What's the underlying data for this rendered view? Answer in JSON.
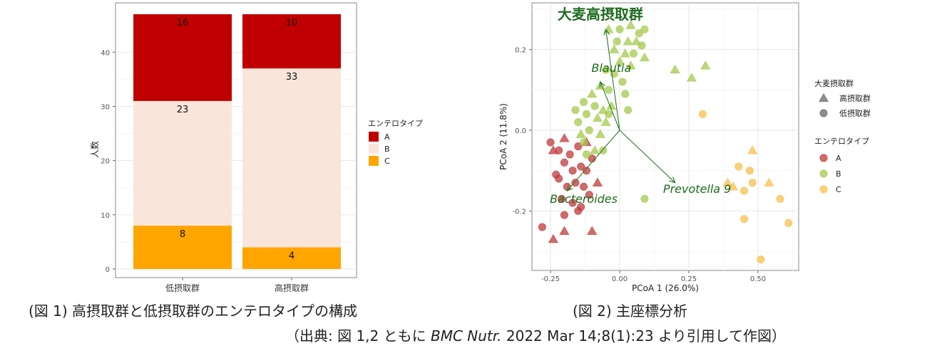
{
  "chart_data": [
    {
      "type": "bar",
      "stacked": true,
      "ylabel": "人数",
      "xlabel": "",
      "ylim": [
        0,
        48
      ],
      "yticks": [
        0,
        10,
        20,
        30,
        40
      ],
      "categories": [
        "低摂取群",
        "高摂取群"
      ],
      "series": [
        {
          "name": "C",
          "color": "#ffa500",
          "values": [
            8,
            4
          ]
        },
        {
          "name": "B",
          "color": "#fae5da",
          "values": [
            23,
            33
          ]
        },
        {
          "name": "A",
          "color": "#c00000",
          "values": [
            16,
            10
          ]
        }
      ],
      "legend": {
        "title": "エンテロタイプ",
        "position": "right",
        "entries": [
          "A",
          "B",
          "C"
        ]
      }
    },
    {
      "type": "scatter",
      "xlabel": "PCoA 1 (26.0%)",
      "ylabel": "PCoA 2 (11.8%)",
      "xlim": [
        -0.3,
        0.63
      ],
      "ylim": [
        -0.37,
        0.3
      ],
      "xticks": [
        -0.25,
        0.0,
        0.25,
        0.5
      ],
      "xtick_labels": [
        "-0.25",
        "0.00",
        "0.25",
        "0.50"
      ],
      "yticks": [
        -0.2,
        0.0,
        0.2
      ],
      "ytick_labels": [
        "-0.2",
        "0.0",
        "0.2"
      ],
      "arrow_origin": [
        0.0,
        0.0
      ],
      "arrows": [
        {
          "label": "大麦高摂取群",
          "end": [
            -0.05,
            0.25
          ],
          "label_pos": [
            -0.07,
            0.275
          ],
          "bold": true
        },
        {
          "label": "Blautia",
          "end": [
            -0.07,
            0.12
          ],
          "label_pos": [
            -0.03,
            0.145
          ],
          "bold": false
        },
        {
          "label": "Bacteroides",
          "end": [
            -0.19,
            -0.15
          ],
          "label_pos": [
            -0.13,
            -0.18
          ],
          "bold": false
        },
        {
          "label": "Prevotella 9",
          "end": [
            0.2,
            -0.13
          ],
          "label_pos": [
            0.28,
            -0.155
          ],
          "bold": false
        }
      ],
      "series": [
        {
          "name": "A",
          "color": "#c0393b",
          "points": [
            {
              "x": -0.25,
              "y": -0.03,
              "shape": "circle"
            },
            {
              "x": -0.22,
              "y": -0.05,
              "shape": "circle"
            },
            {
              "x": -0.2,
              "y": -0.02,
              "shape": "triangle"
            },
            {
              "x": -0.18,
              "y": -0.06,
              "shape": "circle"
            },
            {
              "x": -0.15,
              "y": -0.04,
              "shape": "circle"
            },
            {
              "x": -0.12,
              "y": -0.03,
              "shape": "triangle"
            },
            {
              "x": -0.2,
              "y": -0.08,
              "shape": "circle"
            },
            {
              "x": -0.17,
              "y": -0.1,
              "shape": "circle"
            },
            {
              "x": -0.14,
              "y": -0.09,
              "shape": "circle"
            },
            {
              "x": -0.12,
              "y": -0.1,
              "shape": "circle"
            },
            {
              "x": -0.1,
              "y": -0.07,
              "shape": "circle"
            },
            {
              "x": -0.22,
              "y": -0.12,
              "shape": "circle"
            },
            {
              "x": -0.19,
              "y": -0.14,
              "shape": "circle"
            },
            {
              "x": -0.16,
              "y": -0.13,
              "shape": "circle"
            },
            {
              "x": -0.13,
              "y": -0.14,
              "shape": "circle"
            },
            {
              "x": -0.21,
              "y": -0.17,
              "shape": "circle"
            },
            {
              "x": -0.17,
              "y": -0.18,
              "shape": "circle"
            },
            {
              "x": -0.14,
              "y": -0.19,
              "shape": "circle"
            },
            {
              "x": -0.11,
              "y": -0.16,
              "shape": "circle"
            },
            {
              "x": -0.2,
              "y": -0.21,
              "shape": "circle"
            },
            {
              "x": -0.15,
              "y": -0.2,
              "shape": "circle"
            },
            {
              "x": -0.28,
              "y": -0.24,
              "shape": "circle"
            },
            {
              "x": -0.24,
              "y": -0.27,
              "shape": "triangle"
            },
            {
              "x": -0.2,
              "y": -0.25,
              "shape": "triangle"
            },
            {
              "x": -0.1,
              "y": -0.25,
              "shape": "triangle"
            },
            {
              "x": -0.23,
              "y": -0.11,
              "shape": "circle"
            },
            {
              "x": -0.08,
              "y": -0.13,
              "shape": "triangle"
            },
            {
              "x": -0.24,
              "y": -0.05,
              "shape": "triangle"
            }
          ]
        },
        {
          "name": "B",
          "color": "#a6c94d",
          "points": [
            {
              "x": -0.04,
              "y": 0.25,
              "shape": "triangle"
            },
            {
              "x": 0.0,
              "y": 0.25,
              "shape": "circle"
            },
            {
              "x": 0.04,
              "y": 0.26,
              "shape": "triangle"
            },
            {
              "x": 0.07,
              "y": 0.24,
              "shape": "circle"
            },
            {
              "x": 0.09,
              "y": 0.25,
              "shape": "circle"
            },
            {
              "x": -0.01,
              "y": 0.22,
              "shape": "circle"
            },
            {
              "x": 0.03,
              "y": 0.22,
              "shape": "triangle"
            },
            {
              "x": 0.06,
              "y": 0.22,
              "shape": "triangle"
            },
            {
              "x": 0.08,
              "y": 0.21,
              "shape": "circle"
            },
            {
              "x": -0.02,
              "y": 0.2,
              "shape": "triangle"
            },
            {
              "x": 0.02,
              "y": 0.19,
              "shape": "triangle"
            },
            {
              "x": 0.05,
              "y": 0.19,
              "shape": "circle"
            },
            {
              "x": 0.09,
              "y": 0.18,
              "shape": "triangle"
            },
            {
              "x": 0.0,
              "y": 0.17,
              "shape": "triangle"
            },
            {
              "x": 0.04,
              "y": 0.16,
              "shape": "triangle"
            },
            {
              "x": -0.05,
              "y": 0.15,
              "shape": "circle"
            },
            {
              "x": -0.02,
              "y": 0.14,
              "shape": "circle"
            },
            {
              "x": 0.01,
              "y": 0.12,
              "shape": "circle"
            },
            {
              "x": -0.07,
              "y": 0.11,
              "shape": "triangle"
            },
            {
              "x": -0.04,
              "y": 0.1,
              "shape": "circle"
            },
            {
              "x": 0.02,
              "y": 0.09,
              "shape": "circle"
            },
            {
              "x": -0.1,
              "y": 0.09,
              "shape": "triangle"
            },
            {
              "x": -0.13,
              "y": 0.07,
              "shape": "circle"
            },
            {
              "x": -0.09,
              "y": 0.06,
              "shape": "circle"
            },
            {
              "x": -0.06,
              "y": 0.05,
              "shape": "triangle"
            },
            {
              "x": -0.03,
              "y": 0.06,
              "shape": "triangle"
            },
            {
              "x": 0.03,
              "y": 0.05,
              "shape": "circle"
            },
            {
              "x": -0.16,
              "y": 0.05,
              "shape": "circle"
            },
            {
              "x": -0.12,
              "y": 0.04,
              "shape": "circle"
            },
            {
              "x": -0.08,
              "y": 0.03,
              "shape": "triangle"
            },
            {
              "x": -0.05,
              "y": 0.02,
              "shape": "triangle"
            },
            {
              "x": -0.15,
              "y": 0.02,
              "shape": "circle"
            },
            {
              "x": -0.11,
              "y": 0.0,
              "shape": "circle"
            },
            {
              "x": -0.07,
              "y": -0.01,
              "shape": "triangle"
            },
            {
              "x": -0.13,
              "y": -0.03,
              "shape": "circle"
            },
            {
              "x": -0.09,
              "y": -0.05,
              "shape": "triangle"
            },
            {
              "x": -0.06,
              "y": -0.05,
              "shape": "circle"
            },
            {
              "x": -0.12,
              "y": -0.06,
              "shape": "circle"
            },
            {
              "x": 0.2,
              "y": 0.15,
              "shape": "triangle"
            },
            {
              "x": 0.26,
              "y": 0.13,
              "shape": "triangle"
            },
            {
              "x": 0.31,
              "y": 0.16,
              "shape": "triangle"
            },
            {
              "x": 0.09,
              "y": -0.17,
              "shape": "circle"
            },
            {
              "x": -0.14,
              "y": -0.01,
              "shape": "triangle"
            },
            {
              "x": -0.04,
              "y": 0.04,
              "shape": "circle"
            }
          ]
        },
        {
          "name": "C",
          "color": "#f8bf4c",
          "points": [
            {
              "x": 0.3,
              "y": 0.04,
              "shape": "circle"
            },
            {
              "x": 0.48,
              "y": -0.05,
              "shape": "triangle"
            },
            {
              "x": 0.43,
              "y": -0.09,
              "shape": "circle"
            },
            {
              "x": 0.47,
              "y": -0.1,
              "shape": "circle"
            },
            {
              "x": 0.39,
              "y": -0.13,
              "shape": "triangle"
            },
            {
              "x": 0.41,
              "y": -0.14,
              "shape": "triangle"
            },
            {
              "x": 0.45,
              "y": -0.15,
              "shape": "circle"
            },
            {
              "x": 0.48,
              "y": -0.13,
              "shape": "circle"
            },
            {
              "x": 0.54,
              "y": -0.13,
              "shape": "triangle"
            },
            {
              "x": 0.58,
              "y": -0.17,
              "shape": "circle"
            },
            {
              "x": 0.45,
              "y": -0.22,
              "shape": "circle"
            },
            {
              "x": 0.61,
              "y": -0.23,
              "shape": "circle"
            },
            {
              "x": 0.51,
              "y": -0.32,
              "shape": "circle"
            }
          ]
        }
      ],
      "legend": {
        "position": "right",
        "shape_title": "大麦摂取群",
        "shape_entries": [
          {
            "shape": "triangle",
            "label": "高摂取群"
          },
          {
            "shape": "circle",
            "label": "低摂取群"
          }
        ],
        "color_title": "エンテロタイプ",
        "color_entries": [
          "A",
          "B",
          "C"
        ]
      }
    }
  ],
  "captions": {
    "fig1": "(図 1) 高摂取群と低摂取群のエンテロタイプの構成",
    "fig2": "(図 2) 主座標分析",
    "source_prefix": "（出典: 図 1,2 ともに ",
    "source_journal": "BMC Nutr.",
    "source_suffix": " 2022 Mar 14;8(1):23 より引用して作図）"
  }
}
